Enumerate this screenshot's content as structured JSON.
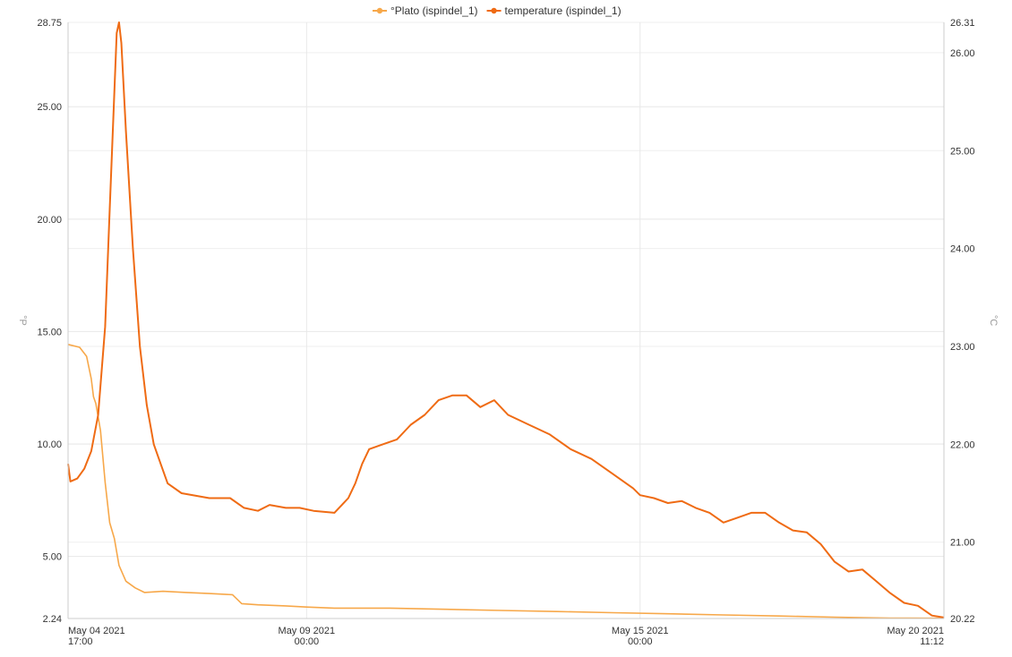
{
  "chart_data": {
    "type": "line",
    "legend_position": "top-center",
    "grid": true,
    "series": [
      {
        "name": "°Plato  (ispindel_1)",
        "axis": "left",
        "color": "#f7a84a",
        "points": [
          [
            "2021-05-04 17:00",
            14.43
          ],
          [
            "2021-05-04 22:00",
            14.3
          ],
          [
            "2021-05-05 01:00",
            13.9
          ],
          [
            "2021-05-05 03:00",
            12.9
          ],
          [
            "2021-05-05 04:00",
            12.1
          ],
          [
            "2021-05-05 05:00",
            11.8
          ],
          [
            "2021-05-05 07:00",
            10.6
          ],
          [
            "2021-05-05 09:00",
            8.3
          ],
          [
            "2021-05-05 11:00",
            6.5
          ],
          [
            "2021-05-05 13:00",
            5.8
          ],
          [
            "2021-05-05 15:00",
            4.6
          ],
          [
            "2021-05-05 18:00",
            3.9
          ],
          [
            "2021-05-05 22:00",
            3.6
          ],
          [
            "2021-05-06 02:00",
            3.4
          ],
          [
            "2021-05-06 10:00",
            3.45
          ],
          [
            "2021-05-06 20:00",
            3.4
          ],
          [
            "2021-05-07 06:00",
            3.35
          ],
          [
            "2021-05-07 16:00",
            3.3
          ],
          [
            "2021-05-07 20:00",
            2.9
          ],
          [
            "2021-05-08 03:00",
            2.85
          ],
          [
            "2021-05-08 15:00",
            2.8
          ],
          [
            "2021-05-09 00:00",
            2.75
          ],
          [
            "2021-05-09 12:00",
            2.7
          ],
          [
            "2021-05-10 12:00",
            2.7
          ],
          [
            "2021-05-11 12:00",
            2.65
          ],
          [
            "2021-05-12 12:00",
            2.6
          ],
          [
            "2021-05-13 12:00",
            2.55
          ],
          [
            "2021-05-14 12:00",
            2.5
          ],
          [
            "2021-05-15 12:00",
            2.45
          ],
          [
            "2021-05-16 12:00",
            2.4
          ],
          [
            "2021-05-17 12:00",
            2.35
          ],
          [
            "2021-05-18 12:00",
            2.3
          ],
          [
            "2021-05-19 12:00",
            2.26
          ],
          [
            "2021-05-20 11:12",
            2.25
          ]
        ]
      },
      {
        "name": "temperature  (ispindel_1)",
        "axis": "right",
        "color": "#ef6b14",
        "points": [
          [
            "2021-05-04 17:00",
            21.8
          ],
          [
            "2021-05-04 18:00",
            21.62
          ],
          [
            "2021-05-04 21:00",
            21.65
          ],
          [
            "2021-05-05 00:00",
            21.75
          ],
          [
            "2021-05-05 03:00",
            21.93
          ],
          [
            "2021-05-05 06:00",
            22.3
          ],
          [
            "2021-05-05 09:00",
            23.2
          ],
          [
            "2021-05-05 11:00",
            24.4
          ],
          [
            "2021-05-05 13:00",
            25.6
          ],
          [
            "2021-05-05 14:00",
            26.2
          ],
          [
            "2021-05-05 15:00",
            26.31
          ],
          [
            "2021-05-05 16:00",
            26.1
          ],
          [
            "2021-05-05 18:00",
            25.2
          ],
          [
            "2021-05-05 21:00",
            24.0
          ],
          [
            "2021-05-06 00:00",
            23.0
          ],
          [
            "2021-05-06 03:00",
            22.4
          ],
          [
            "2021-05-06 06:00",
            22.0
          ],
          [
            "2021-05-06 09:00",
            21.8
          ],
          [
            "2021-05-06 12:00",
            21.6
          ],
          [
            "2021-05-06 18:00",
            21.5
          ],
          [
            "2021-05-07 06:00",
            21.45
          ],
          [
            "2021-05-07 15:00",
            21.45
          ],
          [
            "2021-05-07 21:00",
            21.35
          ],
          [
            "2021-05-08 03:00",
            21.32
          ],
          [
            "2021-05-08 08:00",
            21.38
          ],
          [
            "2021-05-08 15:00",
            21.35
          ],
          [
            "2021-05-08 21:00",
            21.35
          ],
          [
            "2021-05-09 03:00",
            21.32
          ],
          [
            "2021-05-09 12:00",
            21.3
          ],
          [
            "2021-05-09 18:00",
            21.45
          ],
          [
            "2021-05-09 21:00",
            21.6
          ],
          [
            "2021-05-10 00:00",
            21.8
          ],
          [
            "2021-05-10 03:00",
            21.95
          ],
          [
            "2021-05-10 09:00",
            22.0
          ],
          [
            "2021-05-10 15:00",
            22.05
          ],
          [
            "2021-05-10 21:00",
            22.2
          ],
          [
            "2021-05-11 03:00",
            22.3
          ],
          [
            "2021-05-11 09:00",
            22.45
          ],
          [
            "2021-05-11 15:00",
            22.5
          ],
          [
            "2021-05-11 21:00",
            22.5
          ],
          [
            "2021-05-12 03:00",
            22.38
          ],
          [
            "2021-05-12 09:00",
            22.45
          ],
          [
            "2021-05-12 15:00",
            22.3
          ],
          [
            "2021-05-13 00:00",
            22.2
          ],
          [
            "2021-05-13 09:00",
            22.1
          ],
          [
            "2021-05-13 18:00",
            21.95
          ],
          [
            "2021-05-14 03:00",
            21.85
          ],
          [
            "2021-05-14 12:00",
            21.7
          ],
          [
            "2021-05-14 21:00",
            21.55
          ],
          [
            "2021-05-15 00:00",
            21.48
          ],
          [
            "2021-05-15 06:00",
            21.45
          ],
          [
            "2021-05-15 12:00",
            21.4
          ],
          [
            "2021-05-15 18:00",
            21.42
          ],
          [
            "2021-05-16 00:00",
            21.35
          ],
          [
            "2021-05-16 06:00",
            21.3
          ],
          [
            "2021-05-16 12:00",
            21.2
          ],
          [
            "2021-05-16 18:00",
            21.25
          ],
          [
            "2021-05-17 00:00",
            21.3
          ],
          [
            "2021-05-17 06:00",
            21.3
          ],
          [
            "2021-05-17 12:00",
            21.2
          ],
          [
            "2021-05-17 18:00",
            21.12
          ],
          [
            "2021-05-18 00:00",
            21.1
          ],
          [
            "2021-05-18 06:00",
            20.98
          ],
          [
            "2021-05-18 12:00",
            20.8
          ],
          [
            "2021-05-18 18:00",
            20.7
          ],
          [
            "2021-05-19 00:00",
            20.72
          ],
          [
            "2021-05-19 06:00",
            20.6
          ],
          [
            "2021-05-19 12:00",
            20.48
          ],
          [
            "2021-05-19 18:00",
            20.38
          ],
          [
            "2021-05-20 00:00",
            20.35
          ],
          [
            "2021-05-20 06:00",
            20.25
          ],
          [
            "2021-05-20 11:12",
            20.23
          ]
        ]
      }
    ],
    "x_axis": {
      "range": [
        "2021-05-04 17:00",
        "2021-05-20 11:12"
      ],
      "ticks": [
        {
          "value": "2021-05-04 17:00",
          "line1": "May 04 2021",
          "line2": "17:00",
          "anchor": "start"
        },
        {
          "value": "2021-05-09 00:00",
          "line1": "May 09 2021",
          "line2": "00:00",
          "anchor": "middle"
        },
        {
          "value": "2021-05-15 00:00",
          "line1": "May 15 2021",
          "line2": "00:00",
          "anchor": "middle"
        },
        {
          "value": "2021-05-20 11:12",
          "line1": "May 20 2021",
          "line2": "11:12",
          "anchor": "end"
        }
      ]
    },
    "y_left": {
      "label": "°P",
      "range": [
        2.24,
        28.75
      ],
      "ticks": [
        "2.24",
        "5.00",
        "10.00",
        "15.00",
        "20.00",
        "25.00",
        "28.75"
      ]
    },
    "y_right": {
      "label": "°C",
      "range": [
        20.22,
        26.31
      ],
      "ticks": [
        "20.22",
        "21.00",
        "22.00",
        "23.00",
        "24.00",
        "25.00",
        "26.00",
        "26.31"
      ]
    }
  }
}
